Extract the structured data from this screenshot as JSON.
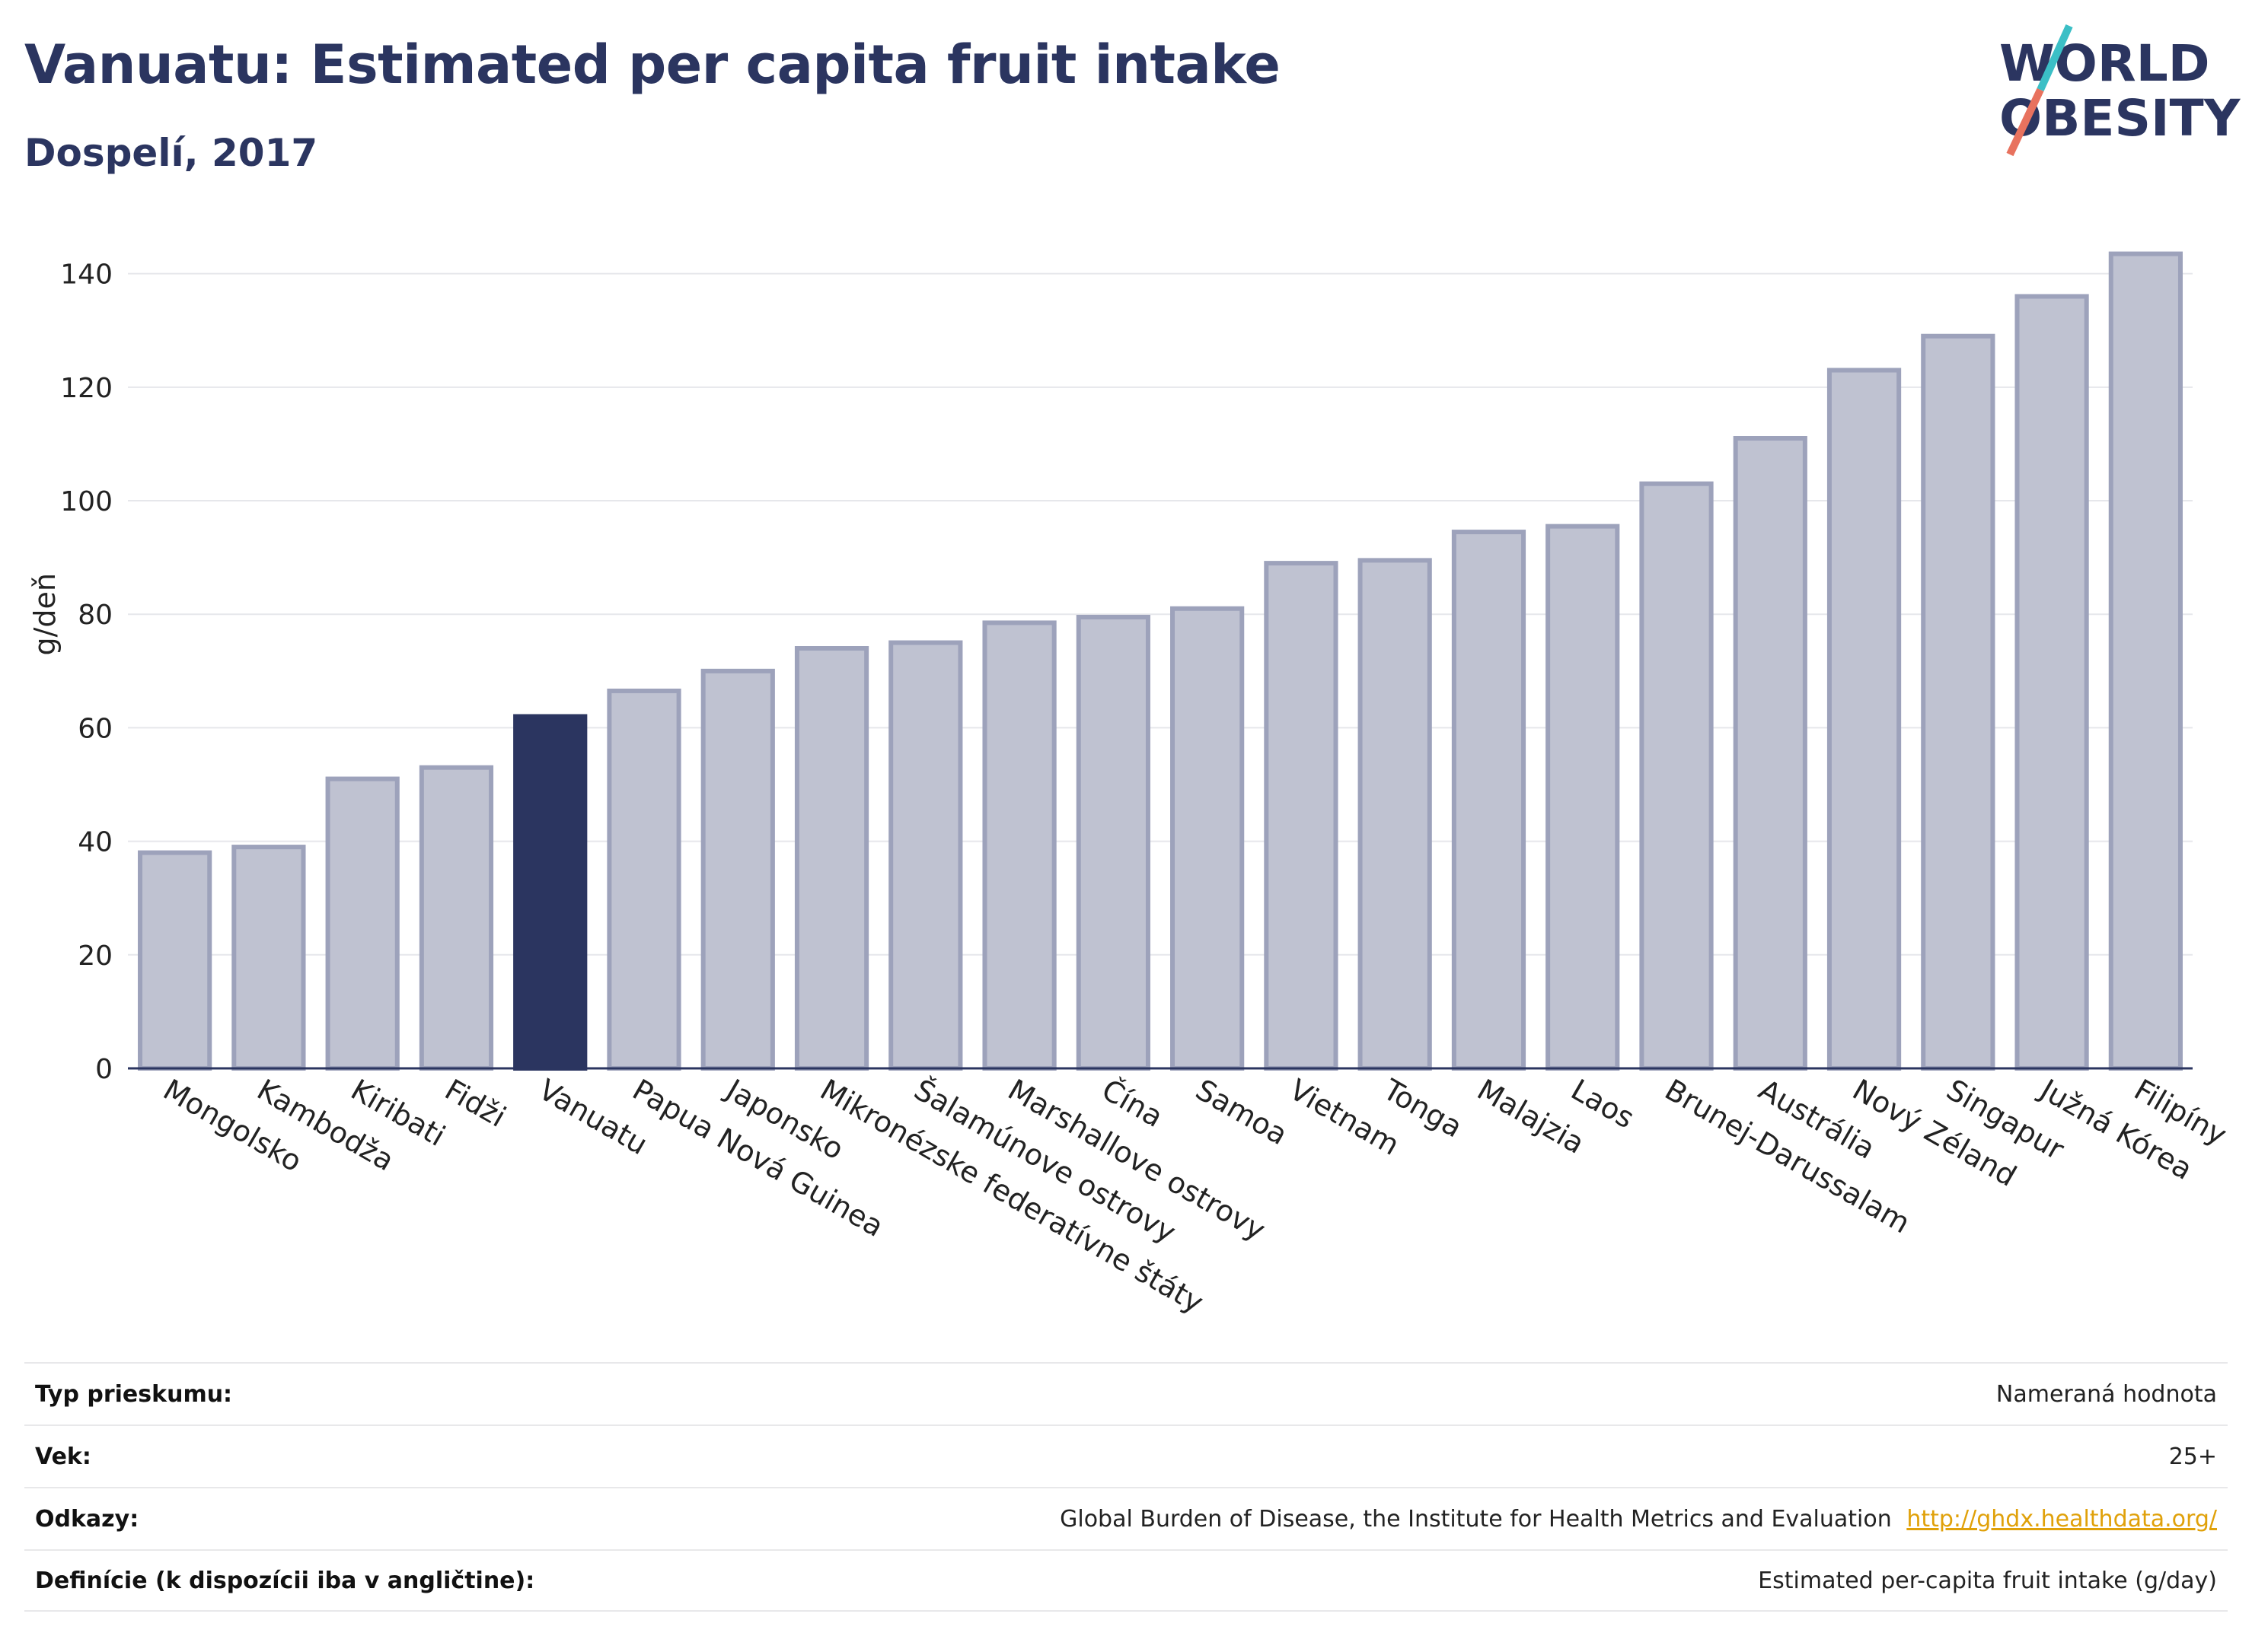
{
  "header": {
    "title": "Vanuatu: Estimated per capita fruit intake",
    "subtitle": "Dospelí, 2017",
    "logo_line1": "WORLD",
    "logo_line2": "OBESITY"
  },
  "colors": {
    "title": "#2b3560",
    "highlight_bar": "#2b3560",
    "bar_fill": "#bfc2d1",
    "bar_stroke": "#9da2bb",
    "link": "#e0a10a",
    "logo_teal": "#3bbfc6",
    "logo_coral": "#e8725e"
  },
  "chart_data": {
    "type": "bar",
    "ylabel": "g/deň",
    "xlabel": "",
    "ylim": [
      0,
      148
    ],
    "yticks": [
      0,
      20,
      40,
      60,
      80,
      100,
      120,
      140
    ],
    "grid": true,
    "highlight": "Vanuatu",
    "categories": [
      "Mongolsko",
      "Kambodža",
      "Kiribati",
      "Fidži",
      "Vanuatu",
      "Papua Nová Guinea",
      "Japonsko",
      "Mikronézske federatívne štáty",
      "Šalamúnove ostrovy",
      "Marshallove ostrovy",
      "Čína",
      "Samoa",
      "Vietnam",
      "Tonga",
      "Malajzia",
      "Laos",
      "Brunej-Darussalam",
      "Austrália",
      "Nový Zéland",
      "Singapur",
      "Južná Kórea",
      "Filipíny"
    ],
    "values": [
      38,
      39,
      51,
      53,
      62,
      66.5,
      70,
      74,
      75,
      78.5,
      79.5,
      81,
      89,
      89.5,
      94.5,
      95.5,
      103,
      111,
      123,
      129,
      136,
      143.5
    ]
  },
  "info": {
    "rows": [
      {
        "key": "Typ prieskumu:",
        "value": "Nameraná hodnota",
        "link": ""
      },
      {
        "key": "Vek:",
        "value": "25+",
        "link": ""
      },
      {
        "key": "Odkazy:",
        "value": "Global Burden of Disease, the Institute for Health Metrics and Evaluation",
        "link": "http://ghdx.healthdata.org/"
      },
      {
        "key": "Definície (k dispozícii iba v angličtine):",
        "value": "Estimated per-capita fruit intake (g/day)",
        "link": ""
      }
    ]
  }
}
